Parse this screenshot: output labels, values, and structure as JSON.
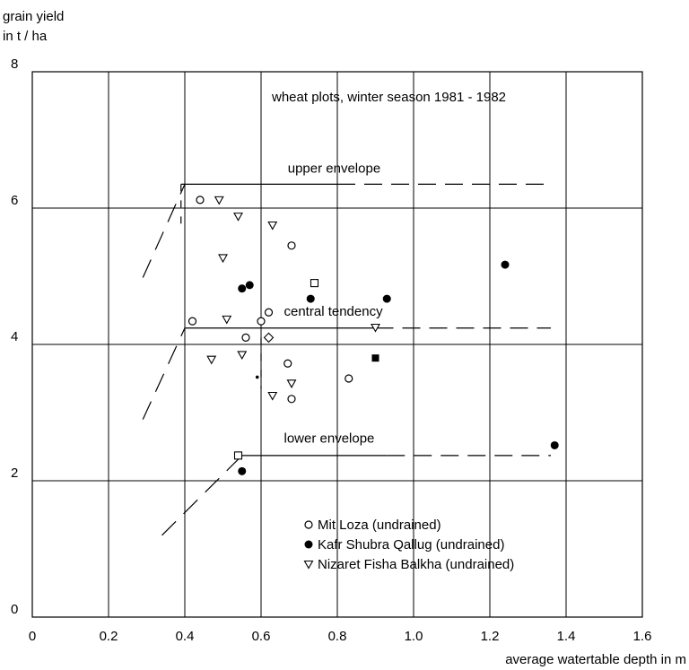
{
  "chart_data": {
    "type": "scatter",
    "title": "wheat plots, winter season 1981 - 1982",
    "ylabel_line1": "grain yield",
    "ylabel_line2": "in t / ha",
    "xlabel": "average watertable depth in m",
    "xlim": [
      0,
      1.6
    ],
    "ylim": [
      0,
      8
    ],
    "xticks": [
      0,
      0.2,
      0.4,
      0.6,
      0.8,
      1.0,
      1.2,
      1.4,
      1.6
    ],
    "xtick_labels": [
      "0",
      "0.2",
      "0.4",
      "0.6",
      "0.8",
      "1.0",
      "1.2",
      "1.4",
      "1.6"
    ],
    "yticks": [
      0,
      2,
      4,
      6,
      8
    ],
    "ytick_labels": [
      "0",
      "2",
      "4",
      "6",
      "8"
    ],
    "grid": true,
    "legend_position": "bottom-right",
    "series": [
      {
        "name": "Mit Loza (undrained)",
        "marker": "open-circle",
        "points": [
          [
            0.44,
            6.12
          ],
          [
            0.42,
            4.34
          ],
          [
            0.6,
            4.34
          ],
          [
            0.62,
            4.47
          ],
          [
            0.56,
            4.1
          ],
          [
            0.67,
            3.72
          ],
          [
            0.68,
            3.2
          ],
          [
            0.83,
            3.5
          ],
          [
            0.68,
            5.45
          ]
        ]
      },
      {
        "name": "Kafr Shubra Qallug (undrained)",
        "marker": "filled-circle",
        "points": [
          [
            0.55,
            4.82
          ],
          [
            0.57,
            4.87
          ],
          [
            0.73,
            4.67
          ],
          [
            0.93,
            4.67
          ],
          [
            1.24,
            5.17
          ],
          [
            1.37,
            2.52
          ],
          [
            0.55,
            2.14
          ]
        ]
      },
      {
        "name": "Nizaret Fisha Balkha (undrained)",
        "marker": "open-triangle",
        "points": [
          [
            0.49,
            6.12
          ],
          [
            0.54,
            5.88
          ],
          [
            0.63,
            5.75
          ],
          [
            0.5,
            5.27
          ],
          [
            0.51,
            4.37
          ],
          [
            0.55,
            3.85
          ],
          [
            0.47,
            3.78
          ],
          [
            0.68,
            3.43
          ],
          [
            0.63,
            3.25
          ],
          [
            0.9,
            4.25
          ]
        ]
      }
    ],
    "extra_markers": [
      {
        "marker": "open-square",
        "x": 0.74,
        "y": 4.9
      },
      {
        "marker": "open-square",
        "x": 0.54,
        "y": 2.37
      },
      {
        "marker": "filled-square",
        "x": 0.9,
        "y": 3.8
      },
      {
        "marker": "open-diamond",
        "x": 0.62,
        "y": 4.1
      },
      {
        "marker": "small-dot",
        "x": 0.59,
        "y": 3.52
      }
    ],
    "lines": [
      {
        "label": "upper envelope",
        "label_at": [
          0.67,
          6.52
        ],
        "solid": [
          [
            0.39,
            6.35
          ],
          [
            0.8,
            6.35
          ]
        ],
        "dashed": [
          [
            0.8,
            6.35
          ],
          [
            1.36,
            6.35
          ]
        ],
        "dashed_slope": [
          [
            0.29,
            4.98
          ],
          [
            0.4,
            6.35
          ]
        ],
        "dashed_vertical": [
          [
            0.39,
            6.35
          ],
          [
            0.39,
            5.75
          ]
        ]
      },
      {
        "label": "central tendency",
        "label_at": [
          0.66,
          4.42
        ],
        "solid": [
          [
            0.4,
            4.24
          ],
          [
            0.9,
            4.24
          ]
        ],
        "dashed": [
          [
            0.9,
            4.24
          ],
          [
            1.36,
            4.24
          ]
        ],
        "dashed_slope": [
          [
            0.29,
            2.9
          ],
          [
            0.4,
            4.24
          ]
        ],
        "dashed_vertical": [
          [
            0.6,
            4.1
          ],
          [
            0.6,
            3.35
          ]
        ]
      },
      {
        "label": "lower envelope",
        "label_at": [
          0.66,
          2.56
        ],
        "solid": [
          [
            0.55,
            2.37
          ],
          [
            0.93,
            2.37
          ]
        ],
        "dashed": [
          [
            0.93,
            2.37
          ],
          [
            1.36,
            2.37
          ]
        ],
        "dashed_slope": [
          [
            0.34,
            1.2
          ],
          [
            0.55,
            2.37
          ]
        ],
        "dashed_vertical": []
      }
    ]
  }
}
